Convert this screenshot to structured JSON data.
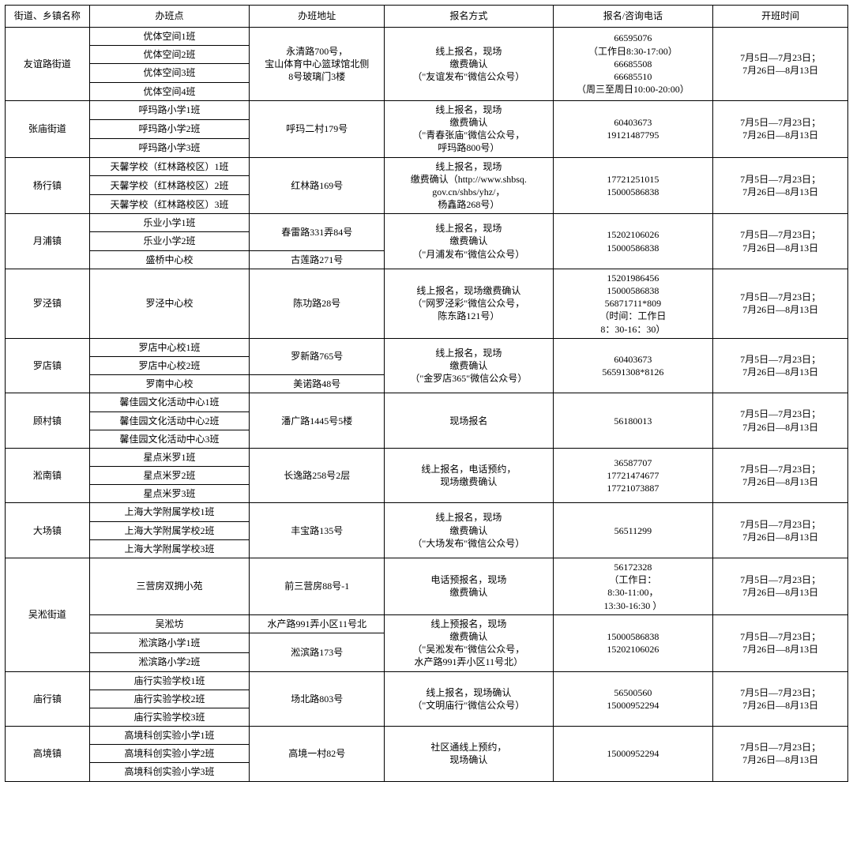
{
  "headers": [
    "街道、乡镇名称",
    "办班点",
    "办班地址",
    "报名方式",
    "报名/咨询电话",
    "开班时间"
  ],
  "commonTime": "7月5日—7月23日；\n7月26日—8月13日",
  "rows": [
    {
      "d": "友谊路街道",
      "dRows": 4,
      "spots": [
        "优体空间1班",
        "优体空间2班",
        "优体空间3班",
        "优体空间4班"
      ],
      "addr": "永清路700号，\n宝山体育中心篮球馆北侧\n8号玻璃门3楼",
      "addrRows": 4,
      "method": "线上报名，现场\n缴费确认\n（\"友谊发布\"微信公众号）",
      "methodRows": 4,
      "phone": "66595076\n（工作日8:30-17:00）\n66685508\n66685510\n（周三至周日10:00-20:00）",
      "phoneRows": 4,
      "timeRows": 4
    },
    {
      "d": "张庙街道",
      "dRows": 3,
      "spots": [
        "呼玛路小学1班",
        "呼玛路小学2班",
        "呼玛路小学3班"
      ],
      "addr": "呼玛二村179号",
      "addrRows": 3,
      "method": "线上报名，现场\n缴费确认\n（\"青春张庙\"微信公众号，\n呼玛路800号）",
      "methodRows": 3,
      "phone": "60403673\n19121487795",
      "phoneRows": 3,
      "timeRows": 3
    },
    {
      "d": "杨行镇",
      "dRows": 3,
      "spots": [
        "天馨学校（红林路校区）1班",
        "天馨学校（红林路校区）2班",
        "天馨学校（红林路校区）3班"
      ],
      "addr": "红林路169号",
      "addrRows": 3,
      "method": "线上报名，现场\n缴费确认（http://www.shbsq.\ngov.cn/shbs/yhz/，\n杨鑫路268号）",
      "methodRows": 3,
      "phone": "17721251015\n15000586838",
      "phoneRows": 3,
      "timeRows": 3
    },
    {
      "d": "月浦镇",
      "dRows": 3,
      "sub": [
        {
          "spot": "乐业小学1班",
          "addr": "春雷路331弄84号",
          "addrRows": 2
        },
        {
          "spot": "乐业小学2班"
        },
        {
          "spot": "盛桥中心校",
          "addr": "古莲路271号",
          "addrRows": 1
        }
      ],
      "method": "线上报名，现场\n缴费确认\n（\"月浦发布\"微信公众号）",
      "methodRows": 3,
      "phone": "15202106026\n15000586838",
      "phoneRows": 3,
      "timeRows": 3
    },
    {
      "d": "罗泾镇",
      "dRows": 1,
      "spots": [
        "罗泾中心校"
      ],
      "addr": "陈功路28号",
      "addrRows": 1,
      "method": "线上报名，现场缴费确认\n（\"网罗泾彩\"微信公众号，\n陈东路121号）",
      "methodRows": 1,
      "phone": "15201986456\n15000586838\n56871711*809\n（时间：工作日\n8：30-16：30）",
      "phoneRows": 1,
      "timeRows": 1
    },
    {
      "d": "罗店镇",
      "dRows": 3,
      "sub": [
        {
          "spot": "罗店中心校1班",
          "addr": "罗新路765号",
          "addrRows": 2
        },
        {
          "spot": "罗店中心校2班"
        },
        {
          "spot": "罗南中心校",
          "addr": "美诺路48号",
          "addrRows": 1
        }
      ],
      "method": "线上报名，现场\n缴费确认\n（\"金罗店365\"微信公众号）",
      "methodRows": 3,
      "phone": "60403673\n56591308*8126",
      "phoneRows": 3,
      "timeRows": 3
    },
    {
      "d": "顾村镇",
      "dRows": 3,
      "spots": [
        "馨佳园文化活动中心1班",
        "馨佳园文化活动中心2班",
        "馨佳园文化活动中心3班"
      ],
      "addr": "潘广路1445号5楼",
      "addrRows": 3,
      "method": "现场报名",
      "methodRows": 3,
      "phone": "56180013",
      "phoneRows": 3,
      "timeRows": 3
    },
    {
      "d": "淞南镇",
      "dRows": 3,
      "spots": [
        "星点米罗1班",
        "星点米罗2班",
        "星点米罗3班"
      ],
      "addr": "长逸路258号2层",
      "addrRows": 3,
      "method": "线上报名，电话预约，\n现场缴费确认",
      "methodRows": 3,
      "phone": "36587707\n17721474677\n17721073887",
      "phoneRows": 3,
      "timeRows": 3
    },
    {
      "d": "大场镇",
      "dRows": 3,
      "spots": [
        "上海大学附属学校1班",
        "上海大学附属学校2班",
        "上海大学附属学校3班"
      ],
      "addr": "丰宝路135号",
      "addrRows": 3,
      "method": "线上报名，现场\n缴费确认\n（\"大场发布\"微信公众号）",
      "methodRows": 3,
      "phone": "56511299",
      "phoneRows": 3,
      "timeRows": 3
    },
    {
      "d": "吴淞街道",
      "dRows": 4,
      "wusong": [
        {
          "spot": "三营房双拥小苑",
          "addr": "前三营房88号-1",
          "method": "电话预报名，现场\n缴费确认",
          "mRows": 1,
          "phone": "56172328\n（工作日：\n8:30-11:00，\n13:30-16:30 ）",
          "pRows": 1,
          "tRows": 1
        },
        {
          "spot": "吴淞坊",
          "addr": "水产路991弄小区11号北",
          "method": "线上预报名，现场\n缴费确认\n（\"吴淞发布\"微信公众号，\n水产路991弄小区11号北）",
          "mRows": 3,
          "phone": "15000586838\n15202106026",
          "pRows": 3,
          "tRows": 3
        },
        {
          "spot": "淞滨路小学1班",
          "addr": "淞滨路173号",
          "addrRows": 2
        },
        {
          "spot": "淞滨路小学2班"
        }
      ]
    },
    {
      "d": "庙行镇",
      "dRows": 3,
      "spots": [
        "庙行实验学校1班",
        "庙行实验学校2班",
        "庙行实验学校3班"
      ],
      "addr": "场北路803号",
      "addrRows": 3,
      "method": "线上报名，现场确认\n（\"文明庙行\"微信公众号）",
      "methodRows": 3,
      "phone": "56500560\n15000952294",
      "phoneRows": 3,
      "timeRows": 3
    },
    {
      "d": "高境镇",
      "dRows": 3,
      "spots": [
        "高境科创实验小学1班",
        "高境科创实验小学2班",
        "高境科创实验小学3班"
      ],
      "addr": "高境一村82号",
      "addrRows": 3,
      "method": "社区通线上预约，\n现场确认",
      "methodRows": 3,
      "phone": "15000952294",
      "phoneRows": 3,
      "timeRows": 3
    }
  ]
}
